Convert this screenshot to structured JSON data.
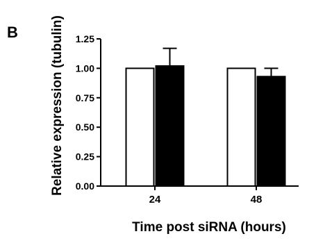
{
  "panel_label": "B",
  "chart_data": {
    "type": "bar",
    "categories": [
      "24",
      "48"
    ],
    "series": [
      {
        "fill": "#ffffff",
        "values": [
          1.0,
          1.0
        ],
        "errors": [
          0,
          0
        ]
      },
      {
        "fill": "#000000",
        "values": [
          1.02,
          0.93
        ],
        "errors": [
          0.15,
          0.07
        ]
      }
    ],
    "ylabel": "Relative expression (tubulin)",
    "xlabel": "Time post siRNA (hours)",
    "ylim": [
      0,
      1.25
    ],
    "yticks": [
      0.0,
      0.25,
      0.5,
      0.75,
      1.0,
      1.25
    ],
    "ytick_labels": [
      "0.00",
      "0.25",
      "0.50",
      "0.75",
      "1.00",
      "1.25"
    ],
    "grid": false,
    "legend": "none"
  }
}
